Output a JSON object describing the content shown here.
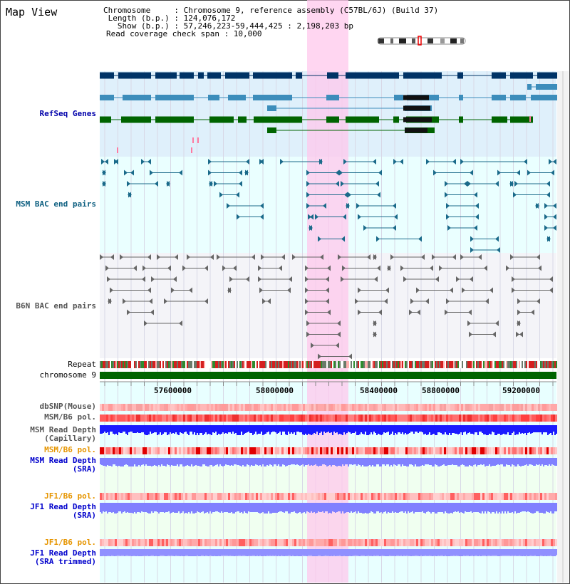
{
  "title": "Map View",
  "info": {
    "chromosome": "Chromosome     : Chromosome 9, reference assembly (C57BL/6J) (Build 37)",
    "length": " Length (b.p.) : 124,076,172",
    "show": "   Show (b.p.) : 57,246,223-59,444,425 : 2,198,203 bp",
    "coverage": "Read coverage check span : 10,000"
  },
  "tracks": {
    "refseq": "RefSeq Genes",
    "msm_bac": "MSM BAC end pairs",
    "b6n_bac": "B6N BAC end pairs",
    "repeat": "Repeat",
    "chrom": "chromosome 9",
    "dbsnp": "dbSNP(Mouse)",
    "msm_b6_pol": "MSM/B6 pol.",
    "msm_depth_cap_1": "MSM Read Depth",
    "msm_depth_cap_2": "(Capillary)",
    "msm_b6_pol_sra": "MSM/B6 pol.",
    "msm_depth_sra_1": "MSM Read Depth",
    "msm_depth_sra_2": "(SRA)",
    "jf1_b6_pol": "JF1/B6 pol.",
    "jf1_depth_sra_1": "JF1 Read Depth",
    "jf1_depth_sra_2": "(SRA)",
    "jf1_b6_pol_trim": "JF1/B6 pol.",
    "jf1_depth_trim_1": "JF1 Read Depth",
    "jf1_depth_trim_2": "(SRA trimmed)"
  },
  "axis": {
    "ticks": [
      "57600000",
      "58000000",
      "58400000",
      "58800000",
      "59200000"
    ]
  },
  "colors": {
    "refseq_dark": "#003366",
    "refseq_mid": "#3c8dbb",
    "refseq_green": "#006400",
    "msm_bac": "#1a6a8a",
    "b6n_bac": "#666666",
    "highlight": "#ffc8ec",
    "depth_blue": "#1a1aff",
    "depth_lavender": "#8080ff",
    "pol_red": "#ff4d4d"
  }
}
